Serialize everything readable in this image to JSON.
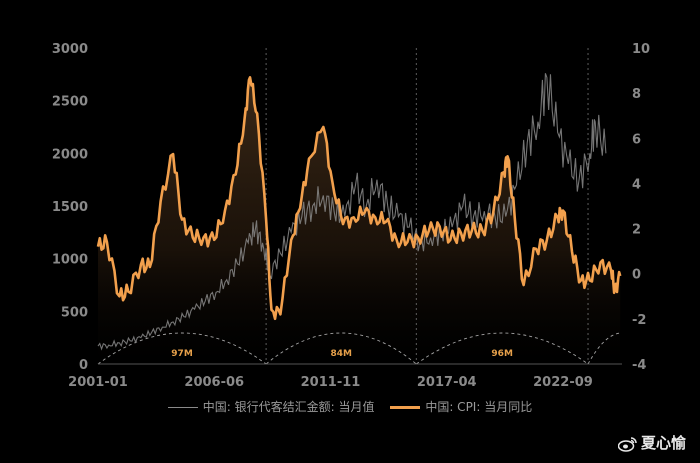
{
  "chart_data": {
    "type": "line",
    "title": "",
    "x_ticks": [
      "2001-01",
      "2006-06",
      "2011-11",
      "2017-04",
      "2022-09"
    ],
    "y_left": {
      "min": 0,
      "max": 3000,
      "ticks": [
        "0",
        "500",
        "1000",
        "1500",
        "2000",
        "2500",
        "3000"
      ]
    },
    "y_right": {
      "min": -4,
      "max": 10,
      "ticks": [
        "-4",
        "-2",
        "0",
        "2",
        "4",
        "6",
        "8",
        "10"
      ]
    },
    "cycle_labels": [
      "97M",
      "84M",
      "96M"
    ],
    "cycle_boundaries": [
      "2008-11",
      "2015-11",
      "2023-11"
    ],
    "grid": false,
    "legend_position": "bottom",
    "series": [
      {
        "name": "中国: 银行代客结汇金额: 当月值",
        "axis": "left",
        "color": "#8a8a8a",
        "points": [
          [
            "2001-01",
            170
          ],
          [
            "2001-07",
            180
          ],
          [
            "2002-01",
            200
          ],
          [
            "2002-07",
            220
          ],
          [
            "2003-01",
            250
          ],
          [
            "2003-07",
            300
          ],
          [
            "2004-01",
            350
          ],
          [
            "2004-07",
            400
          ],
          [
            "2005-01",
            450
          ],
          [
            "2005-07",
            520
          ],
          [
            "2006-01",
            600
          ],
          [
            "2006-07",
            680
          ],
          [
            "2007-01",
            800
          ],
          [
            "2007-07",
            950
          ],
          [
            "2008-01",
            1150
          ],
          [
            "2008-05",
            1280
          ],
          [
            "2008-09",
            1150
          ],
          [
            "2009-01",
            850
          ],
          [
            "2009-07",
            1050
          ],
          [
            "2010-01",
            1250
          ],
          [
            "2010-07",
            1400
          ],
          [
            "2011-01",
            1500
          ],
          [
            "2011-07",
            1600
          ],
          [
            "2012-01",
            1450
          ],
          [
            "2012-07",
            1400
          ],
          [
            "2013-01",
            1700
          ],
          [
            "2013-07",
            1500
          ],
          [
            "2014-01",
            1750
          ],
          [
            "2014-07",
            1500
          ],
          [
            "2015-01",
            1400
          ],
          [
            "2015-07",
            1300
          ],
          [
            "2016-01",
            1150
          ],
          [
            "2016-07",
            1200
          ],
          [
            "2017-01",
            1250
          ],
          [
            "2017-07",
            1300
          ],
          [
            "2018-01",
            1500
          ],
          [
            "2018-07",
            1400
          ],
          [
            "2019-01",
            1450
          ],
          [
            "2019-07",
            1400
          ],
          [
            "2020-01",
            1400
          ],
          [
            "2020-07",
            1700
          ],
          [
            "2021-01",
            2100
          ],
          [
            "2021-07",
            2300
          ],
          [
            "2021-12",
            2720
          ],
          [
            "2022-06",
            2200
          ],
          [
            "2022-12",
            1900
          ],
          [
            "2023-06",
            1750
          ],
          [
            "2023-12",
            2000
          ],
          [
            "2024-03",
            2300
          ],
          [
            "2024-09",
            2000
          ]
        ]
      },
      {
        "name": "中国: CPI: 当月同比",
        "axis": "right",
        "color": "#f2a04d",
        "points": [
          [
            "2001-01",
            1.2
          ],
          [
            "2001-06",
            1.4
          ],
          [
            "2002-01",
            -1.0
          ],
          [
            "2002-06",
            -0.8
          ],
          [
            "2003-01",
            0.4
          ],
          [
            "2003-06",
            0.3
          ],
          [
            "2003-12",
            3.2
          ],
          [
            "2004-07",
            5.3
          ],
          [
            "2004-12",
            2.4
          ],
          [
            "2005-06",
            1.6
          ],
          [
            "2005-12",
            1.6
          ],
          [
            "2006-06",
            1.5
          ],
          [
            "2006-12",
            2.8
          ],
          [
            "2007-06",
            4.4
          ],
          [
            "2007-11",
            6.9
          ],
          [
            "2008-02",
            8.7
          ],
          [
            "2008-06",
            7.1
          ],
          [
            "2008-11",
            2.4
          ],
          [
            "2009-02",
            -1.6
          ],
          [
            "2009-07",
            -1.8
          ],
          [
            "2010-01",
            1.5
          ],
          [
            "2010-06",
            2.9
          ],
          [
            "2010-11",
            5.1
          ],
          [
            "2011-07",
            6.5
          ],
          [
            "2011-12",
            4.1
          ],
          [
            "2012-06",
            2.2
          ],
          [
            "2012-12",
            2.5
          ],
          [
            "2013-06",
            2.7
          ],
          [
            "2013-12",
            2.5
          ],
          [
            "2014-06",
            2.3
          ],
          [
            "2014-12",
            1.5
          ],
          [
            "2015-06",
            1.4
          ],
          [
            "2015-12",
            1.6
          ],
          [
            "2016-06",
            1.9
          ],
          [
            "2016-12",
            2.1
          ],
          [
            "2017-06",
            1.5
          ],
          [
            "2017-12",
            1.8
          ],
          [
            "2018-06",
            1.9
          ],
          [
            "2018-12",
            1.9
          ],
          [
            "2019-06",
            2.7
          ],
          [
            "2019-12",
            4.5
          ],
          [
            "2020-02",
            5.2
          ],
          [
            "2020-06",
            2.5
          ],
          [
            "2020-11",
            -0.5
          ],
          [
            "2021-06",
            1.1
          ],
          [
            "2021-12",
            1.5
          ],
          [
            "2022-06",
            2.5
          ],
          [
            "2022-09",
            2.8
          ],
          [
            "2023-02",
            1.0
          ],
          [
            "2023-07",
            -0.3
          ],
          [
            "2023-12",
            -0.3
          ],
          [
            "2024-06",
            0.5
          ],
          [
            "2024-12",
            0.1
          ],
          [
            "2025-02",
            -0.7
          ],
          [
            "2025-05",
            -0.1
          ]
        ]
      }
    ]
  },
  "legend": {
    "series1": "中国: 银行代客结汇金额: 当月值",
    "series2": "中国: CPI: 当月同比"
  },
  "watermark": "夏心愉",
  "colors": {
    "background": "#000000",
    "cpi": "#f2a04d",
    "fx": "#8a8a8a",
    "arc": "#d9d9d9"
  }
}
